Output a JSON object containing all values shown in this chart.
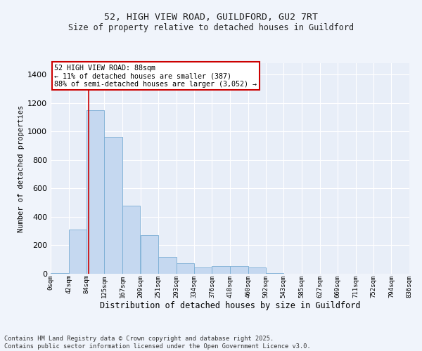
{
  "title_line1": "52, HIGH VIEW ROAD, GUILDFORD, GU2 7RT",
  "title_line2": "Size of property relative to detached houses in Guildford",
  "xlabel": "Distribution of detached houses by size in Guildford",
  "ylabel": "Number of detached properties",
  "bar_color": "#c5d8f0",
  "bar_edge_color": "#7aadd4",
  "background_color": "#e8eef8",
  "grid_color": "#ffffff",
  "annotation_box_color": "#cc0000",
  "annotation_text": "52 HIGH VIEW ROAD: 88sqm\n← 11% of detached houses are smaller (387)\n88% of semi-detached houses are larger (3,052) →",
  "vline_x": 88,
  "vline_color": "#cc0000",
  "bins": [
    0,
    42,
    84,
    125,
    167,
    209,
    251,
    293,
    334,
    376,
    418,
    460,
    502,
    543,
    585,
    627,
    669,
    711,
    752,
    794,
    836
  ],
  "bar_heights": [
    5,
    313,
    1148,
    962,
    480,
    271,
    120,
    75,
    45,
    52,
    52,
    45,
    5,
    0,
    0,
    0,
    0,
    0,
    0,
    0
  ],
  "ylim": [
    0,
    1480
  ],
  "yticks": [
    0,
    200,
    400,
    600,
    800,
    1000,
    1200,
    1400
  ],
  "footnote": "Contains HM Land Registry data © Crown copyright and database right 2025.\nContains public sector information licensed under the Open Government Licence v3.0.",
  "tick_labels": [
    "0sqm",
    "42sqm",
    "84sqm",
    "125sqm",
    "167sqm",
    "209sqm",
    "251sqm",
    "293sqm",
    "334sqm",
    "376sqm",
    "418sqm",
    "460sqm",
    "502sqm",
    "543sqm",
    "585sqm",
    "627sqm",
    "669sqm",
    "711sqm",
    "752sqm",
    "794sqm",
    "836sqm"
  ],
  "fig_width": 6.0,
  "fig_height": 5.0,
  "fig_bg": "#f0f4fb"
}
